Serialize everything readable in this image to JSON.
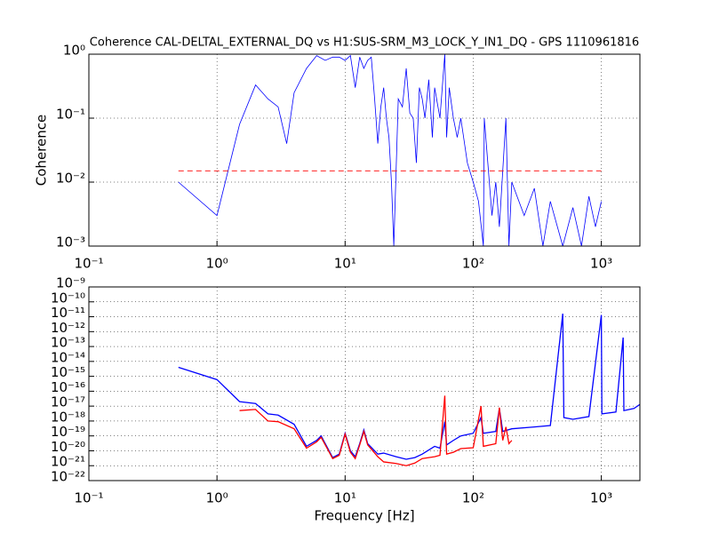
{
  "chart_data": [
    {
      "type": "line",
      "title": "Coherence CAL-DELTAL_EXTERNAL_DQ vs H1:SUS-SRM_M3_LOCK_Y_IN1_DQ - GPS 1110961816",
      "ylabel": "Coherence",
      "xscale": "log",
      "yscale": "log",
      "grid": true,
      "xlim": [
        0.1,
        2000
      ],
      "ylim": [
        0.001,
        1
      ],
      "xticks": [
        {
          "value": 0.1,
          "label": "10⁻¹"
        },
        {
          "value": 1,
          "label": "10⁰"
        },
        {
          "value": 10,
          "label": "10¹"
        },
        {
          "value": 100,
          "label": "10²"
        },
        {
          "value": 1000,
          "label": "10³"
        }
      ],
      "yticks": [
        {
          "value": 0.001,
          "label": "10⁻³"
        },
        {
          "value": 0.01,
          "label": "10⁻²"
        },
        {
          "value": 0.1,
          "label": "10⁻¹"
        },
        {
          "value": 1,
          "label": "10⁰"
        }
      ],
      "series": [
        {
          "color": "#0000ff",
          "style": "solid",
          "x": [
            0.5,
            1,
            1.5,
            2,
            2.5,
            3,
            3.5,
            4,
            5,
            6,
            7,
            8,
            9,
            10,
            11,
            12,
            13,
            14,
            15,
            16,
            17,
            18,
            19,
            20,
            21,
            22,
            23,
            24,
            26,
            28,
            30,
            32,
            34,
            36,
            38,
            40,
            42,
            45,
            48,
            50,
            55,
            60,
            62,
            65,
            70,
            75,
            80,
            90,
            100,
            110,
            120,
            122,
            130,
            140,
            150,
            160,
            180,
            190,
            200,
            250,
            300,
            350,
            400,
            500,
            600,
            700,
            800,
            900,
            1000
          ],
          "values": [
            0.01,
            0.003,
            0.08,
            0.33,
            0.2,
            0.15,
            0.04,
            0.25,
            0.6,
            0.95,
            0.8,
            0.9,
            0.9,
            0.8,
            0.95,
            0.3,
            0.9,
            0.6,
            0.8,
            0.9,
            0.2,
            0.04,
            0.15,
            0.3,
            0.1,
            0.05,
            0.01,
            0.001,
            0.2,
            0.15,
            0.6,
            0.12,
            0.1,
            0.02,
            0.3,
            0.2,
            0.1,
            0.4,
            0.05,
            0.3,
            0.1,
            1,
            0.05,
            0.3,
            0.1,
            0.05,
            0.1,
            0.02,
            0.01,
            0.005,
            0.001,
            0.1,
            0.02,
            0.003,
            0.01,
            0.002,
            0.1,
            0.001,
            0.01,
            0.003,
            0.008,
            0.001,
            0.005,
            0.001,
            0.004,
            0.001,
            0.006,
            0.002,
            0.005
          ]
        },
        {
          "color": "#ff0000",
          "style": "dashed",
          "x": [
            0.5,
            1000
          ],
          "values": [
            0.015,
            0.015
          ]
        }
      ]
    },
    {
      "type": "line",
      "xlabel": "Frequency [Hz]",
      "xscale": "log",
      "yscale": "log",
      "grid": true,
      "xlim": [
        0.1,
        2000
      ],
      "ylim": [
        1e-22,
        1e-09
      ],
      "xticks": [
        {
          "value": 0.1,
          "label": "10⁻¹"
        },
        {
          "value": 1,
          "label": "10⁰"
        },
        {
          "value": 10,
          "label": "10¹"
        },
        {
          "value": 100,
          "label": "10²"
        },
        {
          "value": 1000,
          "label": "10³"
        }
      ],
      "yticks": [
        {
          "value": 1e-22,
          "label": "10⁻²²"
        },
        {
          "value": 1e-21,
          "label": "10⁻²¹"
        },
        {
          "value": 1e-20,
          "label": "10⁻²⁰"
        },
        {
          "value": 1e-19,
          "label": "10⁻¹⁹"
        },
        {
          "value": 1e-18,
          "label": "10⁻¹⁸"
        },
        {
          "value": 1e-17,
          "label": "10⁻¹⁷"
        },
        {
          "value": 1e-16,
          "label": "10⁻¹⁶"
        },
        {
          "value": 1e-15,
          "label": "10⁻¹⁵"
        },
        {
          "value": 1e-14,
          "label": "10⁻¹⁴"
        },
        {
          "value": 1e-13,
          "label": "10⁻¹³"
        },
        {
          "value": 1e-12,
          "label": "10⁻¹²"
        },
        {
          "value": 1e-11,
          "label": "10⁻¹¹"
        },
        {
          "value": 1e-10,
          "label": "10⁻¹⁰"
        },
        {
          "value": 1e-09,
          "label": "10⁻⁹"
        }
      ],
      "series": [
        {
          "color": "#0000ff",
          "style": "solid",
          "x": [
            0.5,
            1,
            1.5,
            2,
            2.5,
            3,
            4,
            5,
            6,
            6.5,
            7,
            8,
            9,
            10,
            11,
            12,
            13,
            14,
            15,
            18,
            20,
            25,
            30,
            35,
            40,
            50,
            55,
            60,
            62,
            70,
            80,
            100,
            115,
            120,
            150,
            160,
            170,
            200,
            300,
            400,
            500,
            510,
            600,
            800,
            1000,
            1010,
            1300,
            1480,
            1500,
            1800,
            2000
          ],
          "values": [
            4e-15,
            6e-16,
            2e-17,
            1.5e-17,
            3e-18,
            2.5e-18,
            6e-19,
            2e-20,
            5e-20,
            1e-19,
            3e-20,
            3.5e-21,
            6e-21,
            1.5e-19,
            1e-20,
            4e-21,
            3e-20,
            2.5e-19,
            3e-20,
            6e-21,
            7e-21,
            4e-21,
            2.7e-21,
            3.5e-21,
            6e-21,
            2e-20,
            1.5e-20,
            9e-19,
            2.5e-20,
            5e-20,
            1e-19,
            1.5e-19,
            1.7e-18,
            1.5e-19,
            2e-19,
            7e-18,
            2e-19,
            3e-19,
            4e-19,
            5e-19,
            1.6e-11,
            1.7e-18,
            1.3e-18,
            2e-18,
            1.3e-11,
            3e-18,
            4e-18,
            4e-13,
            5e-18,
            7e-18,
            1.3e-17
          ]
        },
        {
          "color": "#ff0000",
          "style": "solid",
          "x": [
            1.5,
            2,
            2.5,
            3,
            4,
            5,
            6,
            6.5,
            7,
            8,
            9,
            10,
            11,
            12,
            13,
            14,
            15,
            18,
            20,
            25,
            30,
            35,
            40,
            50,
            55,
            60,
            62,
            70,
            80,
            100,
            115,
            120,
            150,
            160,
            170,
            180,
            190,
            200
          ],
          "values": [
            5e-18,
            6e-18,
            1e-18,
            9e-19,
            3e-19,
            1.5e-20,
            4e-20,
            8e-20,
            2.5e-20,
            3e-21,
            5e-21,
            1.3e-19,
            8e-21,
            3e-21,
            2.5e-20,
            2e-19,
            2.5e-20,
            4e-21,
            1.8e-21,
            1.4e-21,
            1e-21,
            1.5e-21,
            3e-21,
            4e-21,
            5e-21,
            5e-17,
            6e-21,
            8e-21,
            1.4e-20,
            1.6e-20,
            1e-17,
            2e-20,
            3e-20,
            8e-18,
            5e-20,
            4e-19,
            3e-20,
            5e-20
          ]
        }
      ]
    }
  ]
}
